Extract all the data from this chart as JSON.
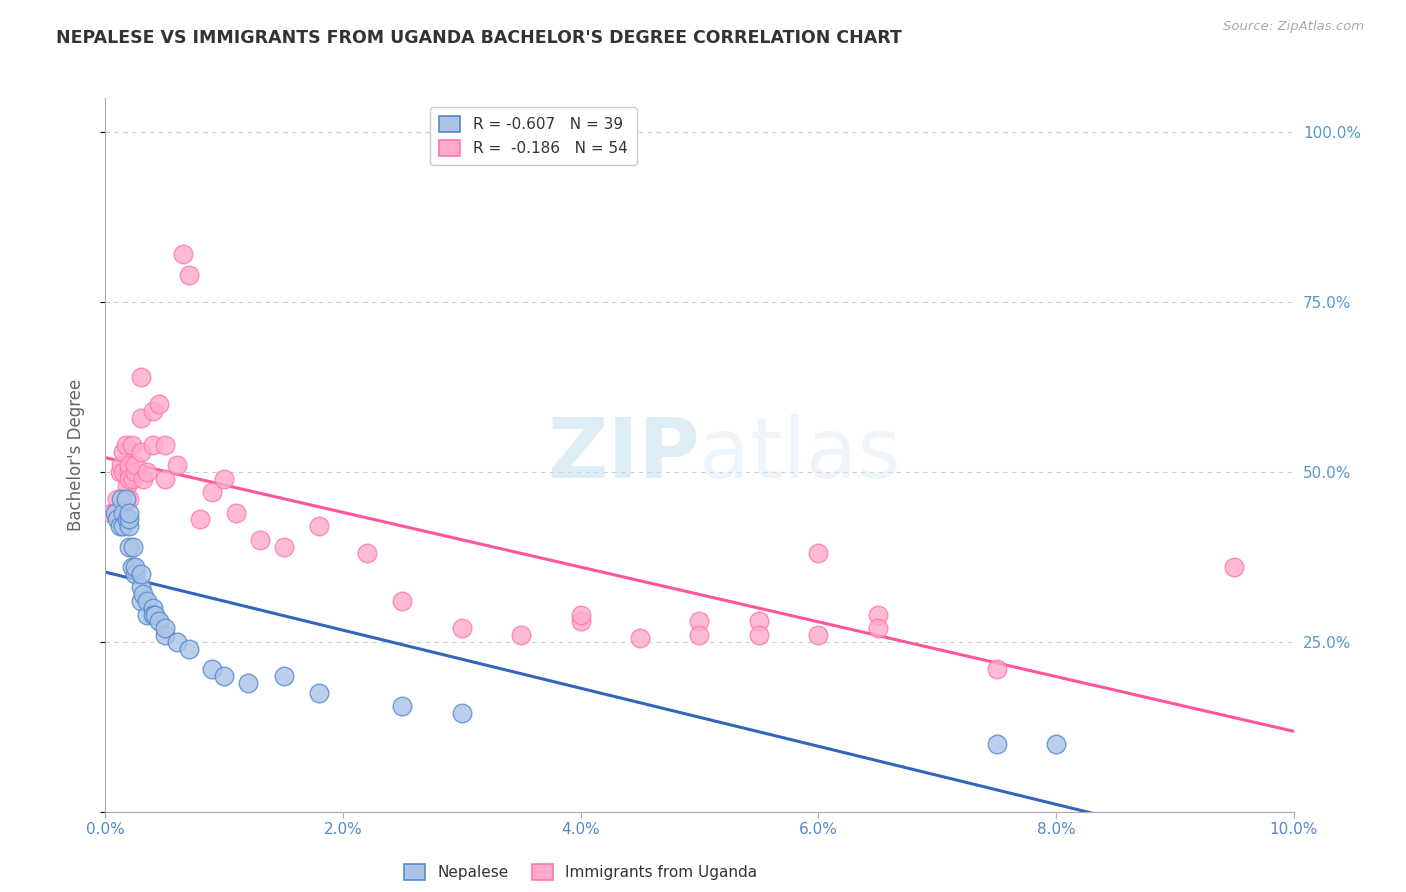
{
  "title": "NEPALESE VS IMMIGRANTS FROM UGANDA BACHELOR'S DEGREE CORRELATION CHART",
  "source": "Source: ZipAtlas.com",
  "ylabel": "Bachelor's Degree",
  "watermark_zip": "ZIP",
  "watermark_atlas": "atlas",
  "xlim": [
    0.0,
    0.1
  ],
  "ylim": [
    0.0,
    1.05
  ],
  "yticks": [
    0.0,
    0.25,
    0.5,
    0.75,
    1.0
  ],
  "ytick_labels": [
    "",
    "25.0%",
    "50.0%",
    "75.0%",
    "100.0%"
  ],
  "xtick_vals": [
    0.0,
    0.02,
    0.04,
    0.06,
    0.08,
    0.1
  ],
  "legend_label1": "R = -0.607   N = 39",
  "legend_label2": "R =  -0.186   N = 54",
  "legend_bottom1": "Nepalese",
  "legend_bottom2": "Immigrants from Uganda",
  "nepalese_fill": "#aac4e8",
  "nepalese_edge": "#5588cc",
  "uganda_fill": "#ffaacc",
  "uganda_edge": "#ff77aa",
  "nepalese_line_color": "#3366bb",
  "uganda_line_color": "#ff5599",
  "grid_color": "#cccccc",
  "background_color": "#ffffff",
  "title_color": "#333333",
  "axis_label_color": "#666666",
  "tick_color": "#5588cc",
  "right_tick_color": "#5599cc",
  "nepalese_x": [
    0.0008,
    0.001,
    0.0012,
    0.0013,
    0.0015,
    0.0015,
    0.0017,
    0.0018,
    0.002,
    0.002,
    0.002,
    0.002,
    0.0022,
    0.0023,
    0.0025,
    0.0025,
    0.003,
    0.003,
    0.003,
    0.0032,
    0.0035,
    0.0035,
    0.004,
    0.004,
    0.0042,
    0.0045,
    0.005,
    0.005,
    0.006,
    0.007,
    0.009,
    0.01,
    0.012,
    0.015,
    0.018,
    0.025,
    0.03,
    0.075,
    0.08
  ],
  "nepalese_y": [
    0.44,
    0.43,
    0.42,
    0.46,
    0.44,
    0.42,
    0.46,
    0.43,
    0.42,
    0.43,
    0.44,
    0.39,
    0.36,
    0.39,
    0.35,
    0.36,
    0.31,
    0.33,
    0.35,
    0.32,
    0.29,
    0.31,
    0.3,
    0.29,
    0.29,
    0.28,
    0.26,
    0.27,
    0.25,
    0.24,
    0.21,
    0.2,
    0.19,
    0.2,
    0.175,
    0.155,
    0.145,
    0.1,
    0.1
  ],
  "uganda_x": [
    0.0005,
    0.001,
    0.001,
    0.0012,
    0.0013,
    0.0015,
    0.0015,
    0.0017,
    0.0018,
    0.002,
    0.002,
    0.002,
    0.002,
    0.0022,
    0.0023,
    0.0025,
    0.0025,
    0.003,
    0.003,
    0.003,
    0.0032,
    0.0035,
    0.004,
    0.004,
    0.0045,
    0.005,
    0.005,
    0.006,
    0.0065,
    0.007,
    0.008,
    0.009,
    0.01,
    0.011,
    0.013,
    0.015,
    0.018,
    0.022,
    0.025,
    0.03,
    0.04,
    0.05,
    0.055,
    0.06,
    0.065,
    0.035,
    0.04,
    0.045,
    0.05,
    0.055,
    0.06,
    0.065,
    0.075,
    0.095
  ],
  "uganda_y": [
    0.44,
    0.46,
    0.44,
    0.5,
    0.51,
    0.53,
    0.5,
    0.54,
    0.48,
    0.5,
    0.51,
    0.46,
    0.49,
    0.54,
    0.49,
    0.5,
    0.51,
    0.58,
    0.53,
    0.64,
    0.49,
    0.5,
    0.54,
    0.59,
    0.6,
    0.54,
    0.49,
    0.51,
    0.82,
    0.79,
    0.43,
    0.47,
    0.49,
    0.44,
    0.4,
    0.39,
    0.42,
    0.38,
    0.31,
    0.27,
    0.28,
    0.28,
    0.28,
    0.38,
    0.29,
    0.26,
    0.29,
    0.255,
    0.26,
    0.26,
    0.26,
    0.27,
    0.21,
    0.36
  ]
}
